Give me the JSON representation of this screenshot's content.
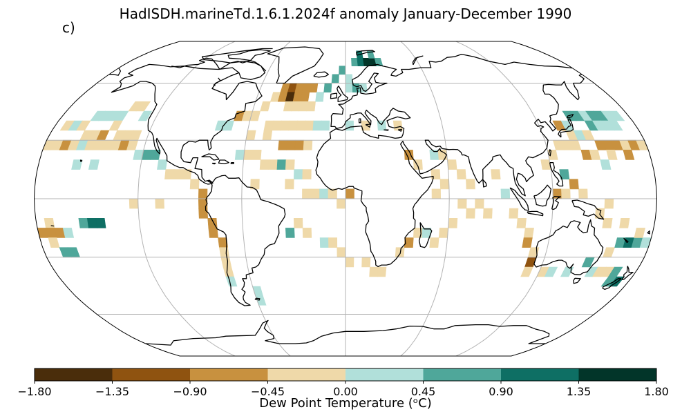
{
  "title": "HadISDH.marineTd.1.6.1.2024f anomaly January-December 1990",
  "panel_label": "c)",
  "colorbar": {
    "label": "Dew Point Temperature (ᵒC)",
    "ticks": [
      "−1.80",
      "−1.35",
      "−0.90",
      "−0.45",
      "0.00",
      "0.45",
      "0.90",
      "1.35",
      "1.80"
    ],
    "range": [
      -1.8,
      1.8
    ],
    "colors": [
      "#4a2d0b",
      "#8f5310",
      "#c8913f",
      "#efd9a9",
      "#b1e0da",
      "#4fa79a",
      "#0e6f64",
      "#023529"
    ]
  },
  "chart_data": {
    "type": "heatmap",
    "projection": "Robinson",
    "variable": "marine dew point temperature anomaly",
    "units": "degC",
    "grid": true,
    "cells": [
      {
        "lon": -157.5,
        "lat": 42.5,
        "value": 0.3
      },
      {
        "lon": -152.5,
        "lat": 42.5,
        "value": 0.3
      },
      {
        "lon": -147.5,
        "lat": 42.5,
        "value": 0.2
      },
      {
        "lon": -142.5,
        "lat": 42.5,
        "value": 0.3
      },
      {
        "lon": -137.5,
        "lat": 47.5,
        "value": -0.3
      },
      {
        "lon": -132.5,
        "lat": 47.5,
        "value": -0.2
      },
      {
        "lon": -127.5,
        "lat": 42.5,
        "value": 0.3
      },
      {
        "lon": -172.5,
        "lat": 37.5,
        "value": -0.2
      },
      {
        "lon": -167.5,
        "lat": 37.5,
        "value": 0.3
      },
      {
        "lon": -162.5,
        "lat": 37.5,
        "value": -0.3
      },
      {
        "lon": -157.5,
        "lat": 32.5,
        "value": -0.2
      },
      {
        "lon": -152.5,
        "lat": 32.5,
        "value": -0.3
      },
      {
        "lon": -147.5,
        "lat": 32.5,
        "value": -0.6
      },
      {
        "lon": -142.5,
        "lat": 37.5,
        "value": -0.2
      },
      {
        "lon": -137.5,
        "lat": 32.5,
        "value": -0.3
      },
      {
        "lon": -132.5,
        "lat": 32.5,
        "value": -0.2
      },
      {
        "lon": -127.5,
        "lat": 32.5,
        "value": -0.3
      },
      {
        "lon": -177.5,
        "lat": 27.5,
        "value": -0.2
      },
      {
        "lon": -172.5,
        "lat": 27.5,
        "value": -0.3
      },
      {
        "lon": -167.5,
        "lat": 27.5,
        "value": -0.6
      },
      {
        "lon": -162.5,
        "lat": 27.5,
        "value": -0.2
      },
      {
        "lon": -157.5,
        "lat": 27.5,
        "value": 0.3
      },
      {
        "lon": -152.5,
        "lat": 27.5,
        "value": -0.3
      },
      {
        "lon": -147.5,
        "lat": 27.5,
        "value": -0.2
      },
      {
        "lon": -142.5,
        "lat": 27.5,
        "value": -0.3
      },
      {
        "lon": -137.5,
        "lat": 27.5,
        "value": -0.2
      },
      {
        "lon": -132.5,
        "lat": 27.5,
        "value": -0.6
      },
      {
        "lon": -127.5,
        "lat": 27.5,
        "value": -0.3
      },
      {
        "lon": -122.5,
        "lat": 22.5,
        "value": 0.3
      },
      {
        "lon": -117.5,
        "lat": 22.5,
        "value": 0.7
      },
      {
        "lon": -112.5,
        "lat": 22.5,
        "value": 0.7
      },
      {
        "lon": -157.5,
        "lat": 17.5,
        "value": 0.3
      },
      {
        "lon": -147.5,
        "lat": 17.5,
        "value": 0.3
      },
      {
        "lon": -107.5,
        "lat": 17.5,
        "value": 0.3
      },
      {
        "lon": -102.5,
        "lat": 12.5,
        "value": -0.2
      },
      {
        "lon": -97.5,
        "lat": 12.5,
        "value": -0.3
      },
      {
        "lon": -92.5,
        "lat": 12.5,
        "value": -0.2
      },
      {
        "lon": -87.5,
        "lat": 7.5,
        "value": -0.3
      },
      {
        "lon": -82.5,
        "lat": 2.5,
        "value": -0.6
      },
      {
        "lon": -82.5,
        "lat": -2.5,
        "value": -0.6
      },
      {
        "lon": -82.5,
        "lat": -7.5,
        "value": -0.7
      },
      {
        "lon": -77.5,
        "lat": -12.5,
        "value": -0.6
      },
      {
        "lon": -77.5,
        "lat": -17.5,
        "value": -0.7
      },
      {
        "lon": -72.5,
        "lat": -22.5,
        "value": -0.6
      },
      {
        "lon": -72.5,
        "lat": -27.5,
        "value": -0.3
      },
      {
        "lon": -72.5,
        "lat": -32.5,
        "value": -0.2
      },
      {
        "lon": -72.5,
        "lat": -37.5,
        "value": -0.3
      },
      {
        "lon": -72.5,
        "lat": -42.5,
        "value": 0.2
      },
      {
        "lon": -57.5,
        "lat": -47.5,
        "value": 0.3
      },
      {
        "lon": -57.5,
        "lat": -52.5,
        "value": 0.3
      },
      {
        "lon": -122.5,
        "lat": -2.5,
        "value": -0.3
      },
      {
        "lon": -107.5,
        "lat": -2.5,
        "value": -0.3
      },
      {
        "lon": -172.5,
        "lat": -12.5,
        "value": -0.3
      },
      {
        "lon": -177.5,
        "lat": -17.5,
        "value": -0.6
      },
      {
        "lon": -172.5,
        "lat": -17.5,
        "value": -0.6
      },
      {
        "lon": -167.5,
        "lat": -17.5,
        "value": -0.6
      },
      {
        "lon": -162.5,
        "lat": -17.5,
        "value": 0.3
      },
      {
        "lon": -152.5,
        "lat": -12.5,
        "value": 0.6
      },
      {
        "lon": -147.5,
        "lat": -12.5,
        "value": 1.0
      },
      {
        "lon": -142.5,
        "lat": -12.5,
        "value": 1.0
      },
      {
        "lon": -172.5,
        "lat": -22.5,
        "value": -0.3
      },
      {
        "lon": -167.5,
        "lat": -27.5,
        "value": 0.6
      },
      {
        "lon": -162.5,
        "lat": -27.5,
        "value": 0.6
      },
      {
        "lon": -77.5,
        "lat": 37.5,
        "value": 0.3
      },
      {
        "lon": -72.5,
        "lat": 37.5,
        "value": 0.3
      },
      {
        "lon": -67.5,
        "lat": 42.5,
        "value": -0.6
      },
      {
        "lon": -62.5,
        "lat": 42.5,
        "value": -0.3
      },
      {
        "lon": -57.5,
        "lat": 42.5,
        "value": -0.3
      },
      {
        "lon": -52.5,
        "lat": 47.5,
        "value": -0.3
      },
      {
        "lon": -47.5,
        "lat": 52.5,
        "value": -0.3
      },
      {
        "lon": -42.5,
        "lat": 57.5,
        "value": -0.6
      },
      {
        "lon": -37.5,
        "lat": 57.5,
        "value": -1.0
      },
      {
        "lon": -32.5,
        "lat": 57.5,
        "value": -0.9
      },
      {
        "lon": -27.5,
        "lat": 57.5,
        "value": -0.7
      },
      {
        "lon": -22.5,
        "lat": 57.5,
        "value": -0.6
      },
      {
        "lon": -42.5,
        "lat": 52.5,
        "value": -0.7
      },
      {
        "lon": -37.5,
        "lat": 52.5,
        "value": -1.4
      },
      {
        "lon": -32.5,
        "lat": 52.5,
        "value": -0.9
      },
      {
        "lon": -27.5,
        "lat": 52.5,
        "value": -0.6
      },
      {
        "lon": -37.5,
        "lat": 47.5,
        "value": -0.3
      },
      {
        "lon": -32.5,
        "lat": 47.5,
        "value": -0.3
      },
      {
        "lon": -27.5,
        "lat": 47.5,
        "value": -0.2
      },
      {
        "lon": -22.5,
        "lat": 47.5,
        "value": -0.3
      },
      {
        "lon": -17.5,
        "lat": 52.5,
        "value": 0.3
      },
      {
        "lon": -12.5,
        "lat": 57.5,
        "value": 0.6
      },
      {
        "lon": -7.5,
        "lat": 62.5,
        "value": 0.7
      },
      {
        "lon": -2.5,
        "lat": 67.5,
        "value": 0.6
      },
      {
        "lon": 2.5,
        "lat": 62.5,
        "value": 0.3
      },
      {
        "lon": 7.5,
        "lat": 72.5,
        "value": 0.6
      },
      {
        "lon": 12.5,
        "lat": 72.5,
        "value": 1.0
      },
      {
        "lon": 17.5,
        "lat": 72.5,
        "value": 1.6
      },
      {
        "lon": 22.5,
        "lat": 72.5,
        "value": 1.5
      },
      {
        "lon": 27.5,
        "lat": 72.5,
        "value": 0.6
      },
      {
        "lon": 12.5,
        "lat": 77.5,
        "value": 1.0
      },
      {
        "lon": 22.5,
        "lat": 77.5,
        "value": 0.6
      },
      {
        "lon": 2.5,
        "lat": 57.5,
        "value": 0.3
      },
      {
        "lon": 7.5,
        "lat": 57.5,
        "value": 0.6
      },
      {
        "lon": 12.5,
        "lat": 57.5,
        "value": 0.3
      },
      {
        "lon": -47.5,
        "lat": 37.5,
        "value": -0.3
      },
      {
        "lon": -42.5,
        "lat": 37.5,
        "value": -0.3
      },
      {
        "lon": -37.5,
        "lat": 37.5,
        "value": -0.2
      },
      {
        "lon": -32.5,
        "lat": 37.5,
        "value": -0.3
      },
      {
        "lon": -27.5,
        "lat": 37.5,
        "value": -0.2
      },
      {
        "lon": -22.5,
        "lat": 37.5,
        "value": -0.3
      },
      {
        "lon": -17.5,
        "lat": 37.5,
        "value": 0.3
      },
      {
        "lon": -12.5,
        "lat": 37.5,
        "value": 0.3
      },
      {
        "lon": -57.5,
        "lat": 32.5,
        "value": -0.2
      },
      {
        "lon": -47.5,
        "lat": 32.5,
        "value": -0.3
      },
      {
        "lon": -37.5,
        "lat": 27.5,
        "value": -0.6
      },
      {
        "lon": -32.5,
        "lat": 27.5,
        "value": -0.7
      },
      {
        "lon": -27.5,
        "lat": 27.5,
        "value": -0.6
      },
      {
        "lon": -22.5,
        "lat": 27.5,
        "value": -0.3
      },
      {
        "lon": -62.5,
        "lat": 22.5,
        "value": 0.3
      },
      {
        "lon": -57.5,
        "lat": 22.5,
        "value": -0.3
      },
      {
        "lon": -52.5,
        "lat": 22.5,
        "value": -0.2
      },
      {
        "lon": -47.5,
        "lat": 17.5,
        "value": -0.3
      },
      {
        "lon": -42.5,
        "lat": 17.5,
        "value": -0.3
      },
      {
        "lon": -37.5,
        "lat": 17.5,
        "value": 0.6
      },
      {
        "lon": -32.5,
        "lat": 17.5,
        "value": -0.3
      },
      {
        "lon": -27.5,
        "lat": 12.5,
        "value": 0.3
      },
      {
        "lon": -22.5,
        "lat": 12.5,
        "value": -0.3
      },
      {
        "lon": -52.5,
        "lat": 7.5,
        "value": -0.3
      },
      {
        "lon": -32.5,
        "lat": 7.5,
        "value": -0.2
      },
      {
        "lon": -22.5,
        "lat": 2.5,
        "value": -0.3
      },
      {
        "lon": -17.5,
        "lat": 2.5,
        "value": -0.2
      },
      {
        "lon": -12.5,
        "lat": 2.5,
        "value": 0.3
      },
      {
        "lon": -7.5,
        "lat": 2.5,
        "value": -0.3
      },
      {
        "lon": -2.5,
        "lat": -2.5,
        "value": -0.3
      },
      {
        "lon": 2.5,
        "lat": 2.5,
        "value": -0.6
      },
      {
        "lon": -27.5,
        "lat": -12.5,
        "value": -0.3
      },
      {
        "lon": -22.5,
        "lat": -17.5,
        "value": -0.3
      },
      {
        "lon": -32.5,
        "lat": -17.5,
        "value": 0.6
      },
      {
        "lon": -12.5,
        "lat": -22.5,
        "value": 0.3
      },
      {
        "lon": -7.5,
        "lat": -22.5,
        "value": -0.3
      },
      {
        "lon": -2.5,
        "lat": -27.5,
        "value": -0.2
      },
      {
        "lon": 2.5,
        "lat": -32.5,
        "value": -0.3
      },
      {
        "lon": 12.5,
        "lat": -32.5,
        "value": -0.3
      },
      {
        "lon": 17.5,
        "lat": -37.5,
        "value": -0.3
      },
      {
        "lon": 22.5,
        "lat": -37.5,
        "value": -0.2
      },
      {
        "lon": 32.5,
        "lat": -27.5,
        "value": -0.3
      },
      {
        "lon": 37.5,
        "lat": -22.5,
        "value": -0.6
      },
      {
        "lon": 42.5,
        "lat": -17.5,
        "value": -0.3
      },
      {
        "lon": 47.5,
        "lat": -17.5,
        "value": 0.3
      },
      {
        "lon": 52.5,
        "lat": -22.5,
        "value": -0.3
      },
      {
        "lon": 57.5,
        "lat": -17.5,
        "value": -0.3
      },
      {
        "lon": 62.5,
        "lat": -12.5,
        "value": -0.3
      },
      {
        "lon": 52.5,
        "lat": 2.5,
        "value": -0.3
      },
      {
        "lon": 57.5,
        "lat": 7.5,
        "value": -0.3
      },
      {
        "lon": 52.5,
        "lat": 12.5,
        "value": -0.3
      },
      {
        "lon": 62.5,
        "lat": 17.5,
        "value": -0.3
      },
      {
        "lon": 67.5,
        "lat": 12.5,
        "value": -0.3
      },
      {
        "lon": 72.5,
        "lat": 7.5,
        "value": -0.3
      },
      {
        "lon": 67.5,
        "lat": -2.5,
        "value": -0.3
      },
      {
        "lon": 72.5,
        "lat": -7.5,
        "value": -0.2
      },
      {
        "lon": 77.5,
        "lat": -2.5,
        "value": -0.3
      },
      {
        "lon": 82.5,
        "lat": -7.5,
        "value": -0.3
      },
      {
        "lon": 87.5,
        "lat": 12.5,
        "value": -0.3
      },
      {
        "lon": 92.5,
        "lat": 2.5,
        "value": 0.3
      },
      {
        "lon": 97.5,
        "lat": -7.5,
        "value": -0.3
      },
      {
        "lon": 102.5,
        "lat": -12.5,
        "value": -0.2
      },
      {
        "lon": 107.5,
        "lat": -17.5,
        "value": -0.3
      },
      {
        "lon": 107.5,
        "lat": -22.5,
        "value": -0.6
      },
      {
        "lon": 112.5,
        "lat": -27.5,
        "value": -0.3
      },
      {
        "lon": 112.5,
        "lat": -32.5,
        "value": -1.0
      },
      {
        "lon": 112.5,
        "lat": -37.5,
        "value": -0.3
      },
      {
        "lon": 122.5,
        "lat": -37.5,
        "value": -0.3
      },
      {
        "lon": 127.5,
        "lat": -37.5,
        "value": 0.3
      },
      {
        "lon": 137.5,
        "lat": -37.5,
        "value": 0.3
      },
      {
        "lon": 147.5,
        "lat": -32.5,
        "value": 0.6
      },
      {
        "lon": 152.5,
        "lat": -37.5,
        "value": 0.3
      },
      {
        "lon": 157.5,
        "lat": -37.5,
        "value": -0.3
      },
      {
        "lon": 162.5,
        "lat": -37.5,
        "value": -0.3
      },
      {
        "lon": 167.5,
        "lat": -37.5,
        "value": 0.6
      },
      {
        "lon": 172.5,
        "lat": -42.5,
        "value": 1.0
      },
      {
        "lon": 167.5,
        "lat": -42.5,
        "value": 0.6
      },
      {
        "lon": 157.5,
        "lat": -27.5,
        "value": -0.3
      },
      {
        "lon": 162.5,
        "lat": -22.5,
        "value": 0.6
      },
      {
        "lon": 167.5,
        "lat": -22.5,
        "value": 1.0
      },
      {
        "lon": 172.5,
        "lat": -22.5,
        "value": 0.6
      },
      {
        "lon": 177.5,
        "lat": -22.5,
        "value": 0.3
      },
      {
        "lon": 172.5,
        "lat": -17.5,
        "value": -0.3
      },
      {
        "lon": 162.5,
        "lat": -12.5,
        "value": -0.3
      },
      {
        "lon": 152.5,
        "lat": -12.5,
        "value": -0.3
      },
      {
        "lon": 147.5,
        "lat": -7.5,
        "value": -0.3
      },
      {
        "lon": 152.5,
        "lat": -2.5,
        "value": -0.3
      },
      {
        "lon": 137.5,
        "lat": 2.5,
        "value": -0.3
      },
      {
        "lon": 132.5,
        "lat": 7.5,
        "value": -0.6
      },
      {
        "lon": 127.5,
        "lat": 12.5,
        "value": 0.6
      },
      {
        "lon": 122.5,
        "lat": 2.5,
        "value": -0.6
      },
      {
        "lon": 127.5,
        "lat": 2.5,
        "value": -0.3
      },
      {
        "lon": 117.5,
        "lat": 17.5,
        "value": -0.3
      },
      {
        "lon": 122.5,
        "lat": 22.5,
        "value": -0.3
      },
      {
        "lon": 127.5,
        "lat": 27.5,
        "value": -0.3
      },
      {
        "lon": 132.5,
        "lat": 27.5,
        "value": -0.3
      },
      {
        "lon": 137.5,
        "lat": 27.5,
        "value": -0.3
      },
      {
        "lon": 142.5,
        "lat": 22.5,
        "value": -0.6
      },
      {
        "lon": 147.5,
        "lat": 22.5,
        "value": -0.3
      },
      {
        "lon": 152.5,
        "lat": 27.5,
        "value": -0.6
      },
      {
        "lon": 157.5,
        "lat": 27.5,
        "value": -0.9
      },
      {
        "lon": 162.5,
        "lat": 27.5,
        "value": -0.6
      },
      {
        "lon": 167.5,
        "lat": 27.5,
        "value": -0.3
      },
      {
        "lon": 172.5,
        "lat": 27.5,
        "value": -0.6
      },
      {
        "lon": 157.5,
        "lat": 22.5,
        "value": -0.3
      },
      {
        "lon": 167.5,
        "lat": 22.5,
        "value": -0.6
      },
      {
        "lon": 177.5,
        "lat": 27.5,
        "value": -0.3
      },
      {
        "lon": 152.5,
        "lat": 17.5,
        "value": 0.3
      },
      {
        "lon": 137.5,
        "lat": 32.5,
        "value": -0.3
      },
      {
        "lon": 142.5,
        "lat": 32.5,
        "value": 0.3
      },
      {
        "lon": 137.5,
        "lat": 37.5,
        "value": 0.3
      },
      {
        "lon": 142.5,
        "lat": 42.5,
        "value": 0.6
      },
      {
        "lon": 147.5,
        "lat": 42.5,
        "value": 0.6
      },
      {
        "lon": 152.5,
        "lat": 42.5,
        "value": 0.3
      },
      {
        "lon": 157.5,
        "lat": 42.5,
        "value": 0.6
      },
      {
        "lon": 162.5,
        "lat": 42.5,
        "value": 0.6
      },
      {
        "lon": 167.5,
        "lat": 42.5,
        "value": 0.3
      },
      {
        "lon": 172.5,
        "lat": 42.5,
        "value": 0.3
      },
      {
        "lon": 152.5,
        "lat": 37.5,
        "value": 0.6
      },
      {
        "lon": 157.5,
        "lat": 37.5,
        "value": 0.3
      },
      {
        "lon": 162.5,
        "lat": 37.5,
        "value": 0.3
      },
      {
        "lon": 167.5,
        "lat": 37.5,
        "value": 0.3
      },
      {
        "lon": 147.5,
        "lat": 32.5,
        "value": -0.3
      },
      {
        "lon": 132.5,
        "lat": 37.5,
        "value": -0.6
      },
      {
        "lon": 32.5,
        "lat": 37.5,
        "value": -0.3
      },
      {
        "lon": 22.5,
        "lat": 37.5,
        "value": 0.3
      },
      {
        "lon": 12.5,
        "lat": 37.5,
        "value": -0.3
      },
      {
        "lon": 2.5,
        "lat": 37.5,
        "value": 0.3
      },
      {
        "lon": 37.5,
        "lat": 22.5,
        "value": -0.6
      },
      {
        "lon": 42.5,
        "lat": 17.5,
        "value": -0.3
      },
      {
        "lon": 52.5,
        "lat": 22.5,
        "value": 0.3
      },
      {
        "lon": 57.5,
        "lat": 22.5,
        "value": -0.3
      }
    ]
  }
}
